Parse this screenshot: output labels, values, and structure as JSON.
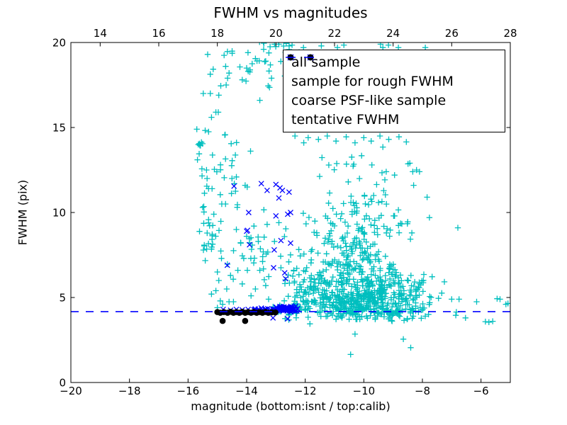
{
  "title": "FWHM vs magnitudes",
  "xlabel": "magnitude (bottom:isnt / top:calib)",
  "ylabel": "FWHM (pix)",
  "colors": {
    "all_sample": "#00bfbf",
    "rough_fwhm": "#0000ff",
    "psf_like": "#000000",
    "tentative_line": "#0000ff",
    "axis": "#000000"
  },
  "legend": {
    "items": [
      {
        "label": "all sample",
        "marker": "plus",
        "color": "#00bfbf"
      },
      {
        "label": "sample for rough FWHM",
        "marker": "x",
        "color": "#0000ff"
      },
      {
        "label": "coarse PSF-like sample",
        "marker": "dot",
        "color": "#000000"
      },
      {
        "label": "tentative FWHM",
        "marker": "dash",
        "color": "#0000ff"
      }
    ]
  },
  "chart_data": {
    "type": "scatter",
    "grid": false,
    "legend_position": "upper right",
    "x_bottom": {
      "lim": [
        -20,
        -5
      ],
      "ticks": [
        -20,
        -18,
        -16,
        -14,
        -12,
        -10,
        -8,
        -6
      ]
    },
    "x_top": {
      "lim": [
        13,
        28
      ],
      "ticks": [
        14,
        16,
        18,
        20,
        22,
        24,
        26,
        28
      ]
    },
    "y": {
      "lim": [
        0,
        20
      ],
      "ticks": [
        0,
        5,
        10,
        15,
        20
      ]
    },
    "tentative_fwhm": 4.17,
    "series": [
      {
        "name": "all sample",
        "marker": "plus",
        "color": "#00bfbf",
        "points": [
          [
            -15.33,
            19.3
          ],
          [
            -15.48,
            17.0
          ],
          [
            -15.24,
            17.0
          ],
          [
            -15.2,
            15.6
          ],
          [
            -15.3,
            14.75
          ],
          [
            -15.65,
            14.0
          ],
          [
            -15.7,
            14.9
          ],
          [
            -15.68,
            13.1
          ],
          [
            -15.62,
            13.45
          ],
          [
            -15.6,
            13.95
          ],
          [
            -15.37,
            12.5
          ],
          [
            -15.35,
            12.0
          ],
          [
            -15.3,
            11.4
          ],
          [
            -15.18,
            11.4
          ],
          [
            -15.5,
            10.3
          ],
          [
            -14.9,
            11.05
          ],
          [
            -14.85,
            10.5
          ],
          [
            -14.72,
            10.5
          ],
          [
            -14.5,
            12.0
          ],
          [
            -14.42,
            11.7
          ],
          [
            -14.38,
            11.25
          ],
          [
            -14.05,
            11.6
          ],
          [
            -13.98,
            11.5
          ],
          [
            -15.12,
            9.9
          ],
          [
            -15.0,
            6.5
          ],
          [
            -14.95,
            6.0
          ],
          [
            -15.05,
            5.4
          ],
          [
            -14.9,
            4.8
          ],
          [
            -15.0,
            4.4
          ],
          [
            -14.82,
            4.6
          ],
          [
            -14.6,
            4.75
          ],
          [
            -15.2,
            5.2
          ],
          [
            -14.68,
            5.5
          ],
          [
            -14.55,
            6.3
          ],
          [
            -13.2,
            19.75
          ],
          [
            -12.9,
            19.9
          ],
          [
            -13.05,
            19.9
          ],
          [
            -13.42,
            19.6
          ],
          [
            -12.55,
            19.8
          ],
          [
            -12.45,
            19.85
          ],
          [
            -12.06,
            19.7
          ],
          [
            -11.45,
            19.8
          ],
          [
            -10.68,
            19.85
          ],
          [
            -10.9,
            19.7
          ],
          [
            -9.43,
            19.9
          ],
          [
            -9.35,
            19.7
          ],
          [
            -9.16,
            19.85
          ],
          [
            -8.82,
            19.7
          ],
          [
            -7.9,
            19.7
          ],
          [
            -12.3,
            17.5
          ],
          [
            -12.42,
            16.4
          ],
          [
            -12.5,
            15.1
          ],
          [
            -12.35,
            14.5
          ],
          [
            -11.9,
            14.4
          ],
          [
            -12.05,
            14.1
          ],
          [
            -11.55,
            14.3
          ],
          [
            -11.25,
            14.5
          ],
          [
            -10.95,
            14.2
          ],
          [
            -10.6,
            14.45
          ],
          [
            -10.3,
            14.1
          ],
          [
            -10.0,
            14.4
          ],
          [
            -9.75,
            14.2
          ],
          [
            -9.45,
            14.5
          ],
          [
            -9.15,
            14.3
          ],
          [
            -8.8,
            14.45
          ],
          [
            -8.55,
            14.15
          ],
          [
            -8.43,
            12.9
          ],
          [
            -8.2,
            12.5
          ],
          [
            -8.1,
            12.4
          ],
          [
            -8.95,
            12.2
          ],
          [
            -8.3,
            11.6
          ],
          [
            -7.84,
            10.9
          ],
          [
            -7.76,
            9.7
          ],
          [
            -6.79,
            9.1
          ],
          [
            -8.5,
            9.45
          ],
          [
            -7.45,
            4.95
          ],
          [
            -7.0,
            4.9
          ],
          [
            -6.75,
            4.9
          ],
          [
            -6.15,
            4.75
          ],
          [
            -5.45,
            4.93
          ],
          [
            -5.35,
            4.9
          ],
          [
            -5.15,
            4.6
          ],
          [
            -5.08,
            4.65
          ],
          [
            -6.86,
            3.95
          ],
          [
            -6.53,
            3.8
          ],
          [
            -5.85,
            3.58
          ],
          [
            -5.73,
            3.55
          ],
          [
            -5.6,
            3.6
          ],
          [
            -10.3,
            2.85
          ],
          [
            -10.45,
            1.65
          ],
          [
            -8.65,
            2.55
          ],
          [
            -8.4,
            2.05
          ],
          [
            -14.35,
            9.0
          ],
          [
            -14.0,
            8.6
          ],
          [
            -13.75,
            9.2
          ],
          [
            -13.3,
            9.3
          ],
          [
            -12.9,
            9.4
          ],
          [
            -14.2,
            8.2
          ],
          [
            -13.6,
            8.3
          ],
          [
            -14.1,
            7.3
          ],
          [
            -13.45,
            7.4
          ],
          [
            -14.3,
            6.6
          ],
          [
            -13.55,
            6.6
          ],
          [
            -14.15,
            5.8
          ],
          [
            -13.7,
            5.5
          ],
          [
            -13.35,
            5.7
          ],
          [
            -13.85,
            5.1
          ],
          [
            -13.25,
            4.9
          ],
          [
            -14.45,
            4.75
          ],
          [
            -13.15,
            17.9
          ],
          [
            -13.55,
            16.6
          ],
          [
            -14.6,
            18.2
          ],
          [
            -14.65,
            17.9
          ],
          [
            -14.7,
            17.5
          ],
          [
            -14.95,
            16.9
          ],
          [
            -15.05,
            15.9
          ]
        ],
        "clusters": [
          {
            "c": [
              -10.1,
              4.6
            ],
            "sx": 0.85,
            "sy": 0.4,
            "n": 250,
            "seed": 1
          },
          {
            "c": [
              -10.2,
              5.6
            ],
            "sx": 0.95,
            "sy": 0.55,
            "n": 170,
            "seed": 2
          },
          {
            "c": [
              -10.3,
              6.8
            ],
            "sx": 0.95,
            "sy": 0.65,
            "n": 110,
            "seed": 3
          },
          {
            "c": [
              -10.45,
              8.3
            ],
            "sx": 0.95,
            "sy": 0.75,
            "n": 75,
            "seed": 4
          },
          {
            "c": [
              -10.3,
              10.0
            ],
            "sx": 0.9,
            "sy": 0.85,
            "n": 48,
            "seed": 5
          },
          {
            "c": [
              -10.2,
              12.2
            ],
            "sx": 0.85,
            "sy": 0.75,
            "n": 26,
            "seed": 6
          },
          {
            "c": [
              -9.7,
              4.05
            ],
            "sx": 1.3,
            "sy": 0.22,
            "n": 80,
            "seed": 9
          },
          {
            "c": [
              -11.95,
              5.1
            ],
            "sx": 0.4,
            "sy": 0.75,
            "n": 45,
            "seed": 10
          },
          {
            "c": [
              -8.35,
              5.3
            ],
            "sx": 0.5,
            "sy": 0.75,
            "n": 55,
            "seed": 11
          },
          {
            "c": [
              -13.6,
              18.9
            ],
            "sx": 0.75,
            "sy": 0.7,
            "n": 45,
            "seed": 12
          },
          {
            "c": [
              -15.32,
              8.6
            ],
            "sx": 0.2,
            "sy": 0.65,
            "n": 24,
            "seed": 13
          },
          {
            "c": [
              -14.85,
              12.6
            ],
            "sx": 0.45,
            "sy": 1.5,
            "n": 30,
            "seed": 14
          },
          {
            "c": [
              -13.55,
              7.6
            ],
            "sx": 0.65,
            "sy": 1.2,
            "n": 35,
            "seed": 15
          },
          {
            "c": [
              -12.45,
              4.4
            ],
            "sx": 0.3,
            "sy": 0.22,
            "n": 40,
            "seed": 16
          }
        ]
      },
      {
        "name": "sample for rough FWHM",
        "marker": "x",
        "color": "#0000ff",
        "points": [
          [
            -14.43,
            11.55
          ],
          [
            -13.5,
            11.7
          ],
          [
            -13.3,
            11.3
          ],
          [
            -13.0,
            11.65
          ],
          [
            -12.86,
            11.45
          ],
          [
            -12.78,
            11.3
          ],
          [
            -12.9,
            10.85
          ],
          [
            -12.55,
            11.2
          ],
          [
            -13.93,
            10.0
          ],
          [
            -13.0,
            9.8
          ],
          [
            -12.6,
            9.9
          ],
          [
            -12.5,
            10.0
          ],
          [
            -13.97,
            8.95
          ],
          [
            -14.0,
            8.9
          ],
          [
            -13.9,
            8.1
          ],
          [
            -12.83,
            8.35
          ],
          [
            -12.5,
            8.2
          ],
          [
            -13.06,
            7.8
          ],
          [
            -14.66,
            6.9
          ],
          [
            -13.08,
            6.75
          ],
          [
            -12.7,
            6.45
          ],
          [
            -12.67,
            6.1
          ],
          [
            -13.1,
            3.8
          ],
          [
            -12.6,
            3.75
          ],
          [
            -14.8,
            4.3
          ],
          [
            -14.55,
            4.25
          ],
          [
            -14.35,
            4.3
          ],
          [
            -14.15,
            4.27
          ],
          [
            -13.95,
            4.3
          ],
          [
            -13.75,
            4.28
          ],
          [
            -13.6,
            4.32
          ],
          [
            -13.48,
            4.26
          ],
          [
            -13.38,
            4.3
          ],
          [
            -13.28,
            4.34
          ],
          [
            -13.18,
            4.28
          ],
          [
            -13.08,
            4.32
          ],
          [
            -12.98,
            4.28
          ]
        ],
        "clusters": [
          {
            "c": [
              -12.62,
              4.33
            ],
            "sx": 0.16,
            "sy": 0.09,
            "n": 55,
            "seed": 7
          },
          {
            "c": [
              -13.05,
              4.3
            ],
            "sx": 0.3,
            "sy": 0.06,
            "n": 20,
            "seed": 8
          }
        ]
      },
      {
        "name": "coarse PSF-like sample",
        "marker": "dot",
        "color": "#000000",
        "points": [
          [
            -15.0,
            4.14
          ],
          [
            -14.9,
            4.1
          ],
          [
            -14.78,
            4.14
          ],
          [
            -14.65,
            4.1
          ],
          [
            -14.55,
            4.16
          ],
          [
            -14.45,
            4.1
          ],
          [
            -14.35,
            4.14
          ],
          [
            -14.25,
            4.1
          ],
          [
            -14.15,
            4.16
          ],
          [
            -14.05,
            4.1
          ],
          [
            -13.95,
            4.14
          ],
          [
            -13.85,
            4.1
          ],
          [
            -13.76,
            4.15
          ],
          [
            -13.66,
            4.1
          ],
          [
            -13.56,
            4.14
          ],
          [
            -13.46,
            4.1
          ],
          [
            -13.36,
            4.15
          ],
          [
            -13.26,
            4.1
          ],
          [
            -13.14,
            4.13
          ],
          [
            -13.02,
            4.12
          ],
          [
            -14.82,
            3.62
          ],
          [
            -14.05,
            3.62
          ]
        ],
        "clusters": []
      }
    ]
  }
}
